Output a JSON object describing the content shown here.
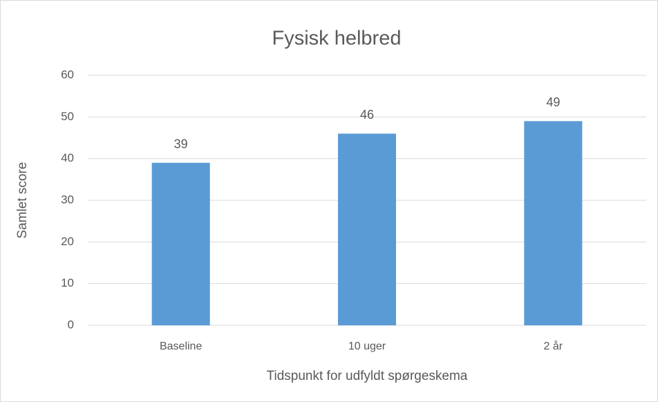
{
  "chart_data": {
    "type": "bar",
    "title": "Fysisk helbred",
    "x_label": "Tidspunkt for udfyldt spørgeskema",
    "y_label": "Samlet score",
    "categories": [
      "Baseline",
      "10 uger",
      "2 år"
    ],
    "values": [
      39,
      46,
      49
    ],
    "color": "#5b9bd5",
    "ylim": [
      0,
      60
    ],
    "yticks": [
      0,
      10,
      20,
      30,
      40,
      50,
      60
    ],
    "grid": true
  }
}
